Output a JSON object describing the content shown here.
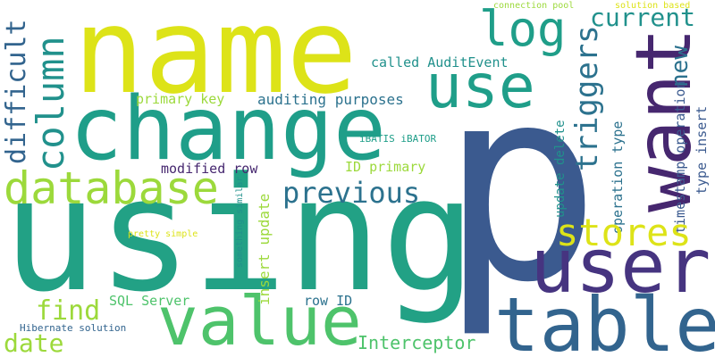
{
  "colors": {
    "background": "#ffffff",
    "navy": "#3b5a8f",
    "indigo": "#463480",
    "purple": "#46276f",
    "blue": "#32648e",
    "steel": "#2c728e",
    "teal": "#21918c",
    "teal_green": "#1f9e89",
    "green": "#4ec36b",
    "lime": "#9cd93b",
    "yellow": "#dde318"
  },
  "words": {
    "p": "p",
    "using": "using",
    "name": "name",
    "change": "change",
    "want": "want",
    "user": "user",
    "table": "table",
    "value": "value",
    "use": "use",
    "database": "database",
    "log": "log",
    "column": "column",
    "current": "current",
    "stores": "stores",
    "previous": "previous",
    "triggers": "triggers",
    "difficult": "difficult",
    "new": "new",
    "find": "find",
    "date": "date",
    "interceptor": "Interceptor",
    "called_auditevent": "called AuditEvent",
    "auditing_purposes": "auditing purposes",
    "primary_key": "primary key",
    "modified_row": "modified row",
    "id_primary": "ID primary",
    "ibatis_ibator": "iBATIS iBATOR",
    "sql_server": "SQL Server",
    "row_id": "row ID",
    "pretty_simple": "pretty simple",
    "hibernate_solution": "Hibernate solution",
    "connection_pool": "connection pool",
    "solution_based": "solution based",
    "something_similar": "something similar",
    "insert_update": "insert update",
    "update_delete": "update delete",
    "operation_type": "operation type",
    "timestamp_operation": "timestamp operation",
    "type_insert": "type insert"
  }
}
